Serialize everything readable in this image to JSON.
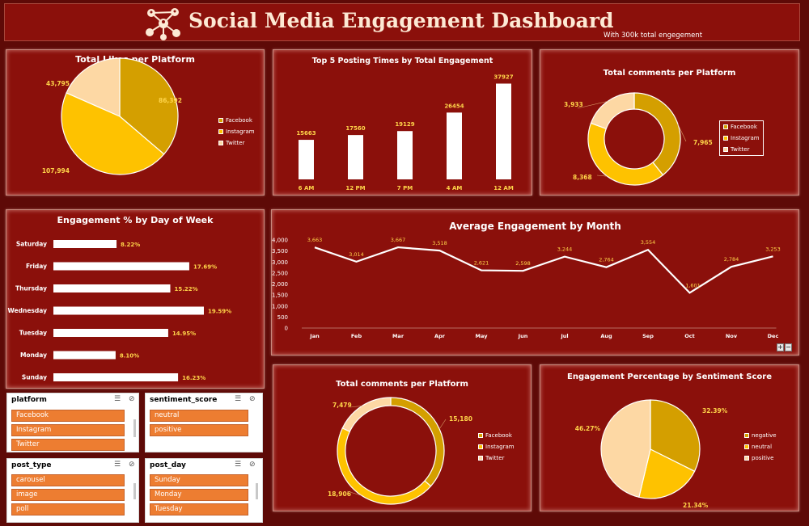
{
  "header": {
    "title": "Social Media Engagement Dashboard",
    "subtitle": "With 300k total engegement"
  },
  "colors": {
    "facebook": "#d49f00",
    "instagram": "#fec200",
    "twitter": "#fdd8a4",
    "panel": "#8b100b",
    "label": "#ffd54a"
  },
  "likes": {
    "title": "Total Likes per Platform",
    "legend": [
      "Facebook",
      "Instagram",
      "Twitter"
    ],
    "chart_data": {
      "type": "pie",
      "categories": [
        "Facebook",
        "Instagram",
        "Twitter"
      ],
      "values": [
        86392,
        107994,
        43795
      ],
      "labels": [
        "86,392",
        "107,994",
        "43,795"
      ]
    }
  },
  "posting": {
    "title": "Top 5 Posting Times by Total Engagement",
    "chart_data": {
      "type": "bar",
      "categories": [
        "6 AM",
        "12 PM",
        "7 PM",
        "4 AM",
        "12 AM"
      ],
      "values": [
        15663,
        17560,
        19129,
        26454,
        37927
      ],
      "labels": [
        "15663",
        "17560",
        "19129",
        "26454",
        "37927"
      ]
    }
  },
  "comments1": {
    "title": "Total comments per Platform",
    "legend": [
      "Facebook",
      "Instagram",
      "Twitter"
    ],
    "chart_data": {
      "type": "pie",
      "categories": [
        "Facebook",
        "Instagram",
        "Twitter"
      ],
      "values": [
        7965,
        8368,
        3933
      ],
      "labels": [
        "7,965",
        "8,368",
        "3,933"
      ]
    }
  },
  "dayofweek": {
    "title": "Engagement % by Day of Week",
    "chart_data": {
      "type": "bar",
      "categories": [
        "Saturday",
        "Friday",
        "Thursday",
        "Wednesday",
        "Tuesday",
        "Monday",
        "Sunday"
      ],
      "values": [
        8.22,
        17.69,
        15.22,
        19.59,
        14.95,
        8.1,
        16.23
      ],
      "labels": [
        "8.22%",
        "17.69%",
        "15.22%",
        "19.59%",
        "14.95%",
        "8.10%",
        "16.23%"
      ]
    }
  },
  "monthly": {
    "title": "Average Engagement by Month",
    "chart_data": {
      "type": "line",
      "categories": [
        "Jan",
        "Feb",
        "Mar",
        "Apr",
        "May",
        "Jun",
        "Jul",
        "Aug",
        "Sep",
        "Oct",
        "Nov",
        "Dec"
      ],
      "values": [
        3663,
        3014,
        3667,
        3518,
        2621,
        2598,
        3244,
        2764,
        3554,
        1601,
        2784,
        3253
      ],
      "labels": [
        "3,663",
        "3,014",
        "3,667",
        "3,518",
        "2,621",
        "2,598",
        "3,244",
        "2,764",
        "3,554",
        "1,601",
        "2,784",
        "3,253"
      ],
      "yticks": [
        "0",
        "500",
        "1,000",
        "1,500",
        "2,000",
        "2,500",
        "3,000",
        "3,500",
        "4,000"
      ],
      "ylim": [
        0,
        4000
      ]
    }
  },
  "comments2": {
    "title": "Total comments per Platform",
    "legend": [
      "Facebook",
      "Instagram",
      "Twitter"
    ],
    "chart_data": {
      "type": "pie",
      "categories": [
        "Facebook",
        "Instagram",
        "Twitter"
      ],
      "values": [
        15180,
        18906,
        7479
      ],
      "labels": [
        "15,180",
        "18,906",
        "7,479"
      ]
    }
  },
  "sentiment": {
    "title": "Engagement Percentage by Sentiment Score",
    "legend": [
      "negative",
      "neutral",
      "positive"
    ],
    "chart_data": {
      "type": "pie",
      "categories": [
        "negative",
        "neutral",
        "positive"
      ],
      "values": [
        32.39,
        21.34,
        46.27
      ],
      "labels": [
        "32.39%",
        "21.34%",
        "46.27%"
      ]
    }
  },
  "slicers": {
    "platform": {
      "title": "platform",
      "items": [
        "Facebook",
        "Instagram",
        "Twitter"
      ]
    },
    "sentiment_score": {
      "title": "sentiment_score",
      "items": [
        "neutral",
        "positive"
      ]
    },
    "post_type": {
      "title": "post_type",
      "items": [
        "carousel",
        "image",
        "poll"
      ]
    },
    "post_day": {
      "title": "post_day",
      "items": [
        "Sunday",
        "Monday",
        "Tuesday"
      ]
    }
  },
  "zoom": {
    "plus": "+",
    "minus": "−"
  }
}
